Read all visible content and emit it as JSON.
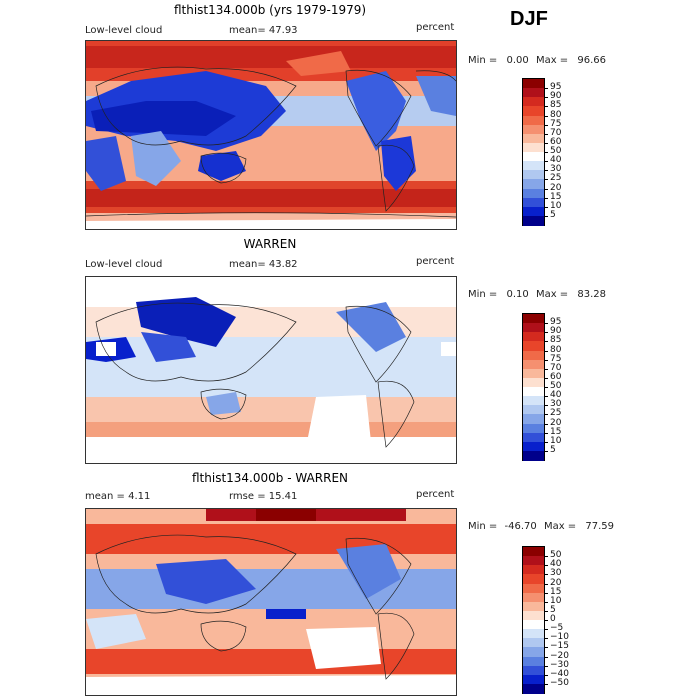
{
  "season": "DJF",
  "panels": [
    {
      "title": "flthist134.000b (yrs 1979-1979)",
      "left_label": "Low-level cloud",
      "mid_label": "mean=  47.93",
      "right_label": "percent",
      "min_label": "Min =",
      "min_value": "0.00",
      "max_label": "Max =",
      "max_value": "96.66",
      "colorbar": {
        "labels": [
          "95",
          "90",
          "85",
          "80",
          "75",
          "70",
          "60",
          "50",
          "40",
          "30",
          "25",
          "20",
          "15",
          "10",
          "5"
        ],
        "colors": [
          "#8b0000",
          "#b0101a",
          "#d42a1f",
          "#e8452a",
          "#f06a48",
          "#f59070",
          "#f9b89b",
          "#fde0d0",
          "#ffffff",
          "#d4e4f8",
          "#b0c8f0",
          "#86a6e8",
          "#5a80e0",
          "#3250d8",
          "#0820cc",
          "#00008b"
        ]
      }
    },
    {
      "title": "WARREN",
      "left_label": "Low-level cloud",
      "mid_label": "mean=  43.82",
      "right_label": "percent",
      "min_label": "Min =",
      "min_value": "0.10",
      "max_label": "Max =",
      "max_value": "83.28",
      "colorbar": {
        "labels": [
          "95",
          "90",
          "85",
          "80",
          "75",
          "70",
          "60",
          "50",
          "40",
          "30",
          "25",
          "20",
          "15",
          "10",
          "5"
        ],
        "colors": [
          "#8b0000",
          "#b0101a",
          "#d42a1f",
          "#e8452a",
          "#f06a48",
          "#f59070",
          "#f9b89b",
          "#fde0d0",
          "#ffffff",
          "#d4e4f8",
          "#b0c8f0",
          "#86a6e8",
          "#5a80e0",
          "#3250d8",
          "#0820cc",
          "#00008b"
        ]
      }
    },
    {
      "title": "flthist134.000b - WARREN",
      "left_label": "mean =   4.11",
      "mid_label": "rmse =  15.41",
      "right_label": "percent",
      "min_label": "Min =",
      "min_value": "-46.70",
      "max_label": "Max =",
      "max_value": "77.59",
      "colorbar": {
        "labels": [
          "50",
          "40",
          "30",
          "20",
          "15",
          "10",
          "5",
          "0",
          "−5",
          "−10",
          "−15",
          "−20",
          "−30",
          "−40",
          "−50"
        ],
        "colors": [
          "#8b0000",
          "#b0101a",
          "#d42a1f",
          "#e8452a",
          "#f06a48",
          "#f59070",
          "#f9b89b",
          "#fde0d0",
          "#ffffff",
          "#d4e4f8",
          "#b0c8f0",
          "#86a6e8",
          "#5a80e0",
          "#3250d8",
          "#0820cc",
          "#00008b"
        ]
      }
    }
  ]
}
